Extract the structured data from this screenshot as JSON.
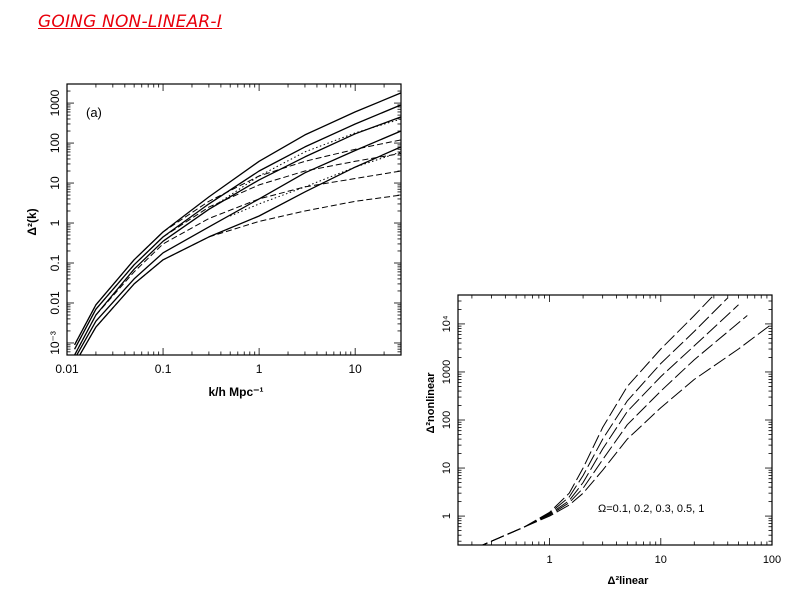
{
  "slide": {
    "title": "GOING NON-LINEAR-I"
  },
  "chart_data": [
    {
      "type": "line",
      "panel_label": "(a)",
      "xlabel": "k/h Mpc⁻¹",
      "ylabel": "Δ²(k)",
      "xscale": "log",
      "yscale": "log",
      "xlim": [
        0.01,
        30
      ],
      "ylim": [
        0.0005,
        3000
      ],
      "x_ticks": [
        0.01,
        0.1,
        1,
        10
      ],
      "x_tick_labels": [
        "0.01",
        "0.1",
        "1",
        "10"
      ],
      "y_ticks": [
        0.001,
        0.01,
        0.1,
        1,
        10,
        100,
        1000
      ],
      "y_tick_labels": [
        "10⁻³",
        "0.01",
        "0.1",
        "1",
        "10",
        "100",
        "1000"
      ],
      "series": [
        {
          "style": "solid",
          "x": [
            0.012,
            0.02,
            0.05,
            0.1,
            0.3,
            1,
            3,
            10,
            30
          ],
          "y": [
            0.0005,
            0.005,
            0.07,
            0.35,
            2.2,
            12,
            45,
            170,
            450
          ]
        },
        {
          "style": "solid",
          "x": [
            0.012,
            0.02,
            0.05,
            0.1,
            0.3,
            1,
            3,
            10,
            30
          ],
          "y": [
            0.0007,
            0.007,
            0.09,
            0.45,
            3,
            20,
            80,
            300,
            900
          ]
        },
        {
          "style": "solid",
          "x": [
            0.012,
            0.02,
            0.05,
            0.1,
            0.3,
            1,
            3,
            10,
            30
          ],
          "y": [
            0.0009,
            0.009,
            0.12,
            0.6,
            4.5,
            35,
            160,
            600,
            1800
          ]
        },
        {
          "style": "solid",
          "x": [
            0.012,
            0.02,
            0.05,
            0.1,
            0.3,
            1,
            3,
            10,
            30
          ],
          "y": [
            0.0004,
            0.0035,
            0.04,
            0.18,
            0.8,
            4,
            18,
            65,
            200
          ]
        },
        {
          "style": "solid",
          "x": [
            0.012,
            0.02,
            0.05,
            0.1,
            0.3,
            1,
            3,
            10,
            30
          ],
          "y": [
            0.0003,
            0.0025,
            0.03,
            0.12,
            0.45,
            1.5,
            6,
            25,
            80
          ]
        },
        {
          "style": "dashed",
          "x": [
            0.012,
            0.02,
            0.05,
            0.1,
            0.3,
            1,
            3,
            10,
            30
          ],
          "y": [
            0.0003,
            0.0025,
            0.03,
            0.12,
            0.45,
            1.1,
            2.0,
            3.5,
            5
          ]
        },
        {
          "style": "dashed",
          "x": [
            0.012,
            0.02,
            0.05,
            0.1,
            0.3,
            1,
            3,
            10,
            30
          ],
          "y": [
            0.0005,
            0.005,
            0.06,
            0.3,
            1.3,
            4,
            8,
            13,
            20
          ]
        },
        {
          "style": "dashed",
          "x": [
            0.012,
            0.02,
            0.05,
            0.1,
            0.3,
            1,
            3,
            10,
            30
          ],
          "y": [
            0.0007,
            0.007,
            0.09,
            0.45,
            2.5,
            9,
            20,
            35,
            55
          ]
        },
        {
          "style": "dashed",
          "x": [
            0.012,
            0.02,
            0.05,
            0.1,
            0.3,
            1,
            3,
            10,
            30
          ],
          "y": [
            0.0009,
            0.009,
            0.12,
            0.6,
            3.5,
            15,
            35,
            70,
            120
          ]
        },
        {
          "style": "dotted",
          "x": [
            0.3,
            1,
            3,
            10,
            30
          ],
          "y": [
            2.2,
            15,
            60,
            180,
            400
          ]
        },
        {
          "style": "dotted",
          "x": [
            0.5,
            1,
            3,
            10,
            30
          ],
          "y": [
            1.5,
            3,
            8,
            25,
            60
          ]
        }
      ]
    },
    {
      "type": "line",
      "xlabel": "Δ²linear",
      "ylabel": "Δ²nonlinear",
      "xscale": "log",
      "yscale": "log",
      "xlim": [
        0.15,
        100
      ],
      "ylim": [
        0.25,
        40000
      ],
      "x_ticks": [
        1,
        10,
        100
      ],
      "x_tick_labels": [
        "1",
        "10",
        "100"
      ],
      "y_ticks": [
        1,
        10,
        100,
        1000,
        10000
      ],
      "y_tick_labels": [
        "1",
        "10",
        "100",
        "1000",
        "10⁴"
      ],
      "annotation": "Ω=0.1, 0.2, 0.3, 0.5, 1",
      "series": [
        {
          "style": "long-dashed",
          "x": [
            0.15,
            0.3,
            0.6,
            1,
            1.5,
            2,
            3,
            5,
            10,
            20,
            30
          ],
          "y": [
            0.15,
            0.3,
            0.6,
            1.2,
            3,
            10,
            70,
            500,
            3000,
            15000,
            40000
          ]
        },
        {
          "style": "long-dashed",
          "x": [
            0.15,
            0.3,
            0.6,
            1,
            1.5,
            2,
            3,
            5,
            10,
            20,
            40
          ],
          "y": [
            0.15,
            0.3,
            0.6,
            1.15,
            2.5,
            7,
            40,
            250,
            1500,
            7000,
            35000
          ]
        },
        {
          "style": "long-dashed",
          "x": [
            0.15,
            0.3,
            0.6,
            1,
            1.5,
            2,
            3,
            5,
            10,
            20,
            50
          ],
          "y": [
            0.15,
            0.3,
            0.6,
            1.1,
            2.1,
            5,
            25,
            150,
            800,
            3500,
            25000
          ]
        },
        {
          "style": "long-dashed",
          "x": [
            0.15,
            0.3,
            0.6,
            1,
            1.5,
            2,
            3,
            5,
            10,
            20,
            60
          ],
          "y": [
            0.15,
            0.3,
            0.6,
            1.05,
            1.9,
            3.8,
            15,
            80,
            400,
            1800,
            15000
          ]
        },
        {
          "style": "long-dashed",
          "x": [
            0.15,
            0.3,
            0.6,
            1,
            1.5,
            2,
            3,
            5,
            10,
            20,
            50,
            100
          ],
          "y": [
            0.15,
            0.3,
            0.6,
            1.0,
            1.7,
            3,
            9,
            40,
            180,
            700,
            3000,
            10000
          ]
        }
      ]
    }
  ]
}
